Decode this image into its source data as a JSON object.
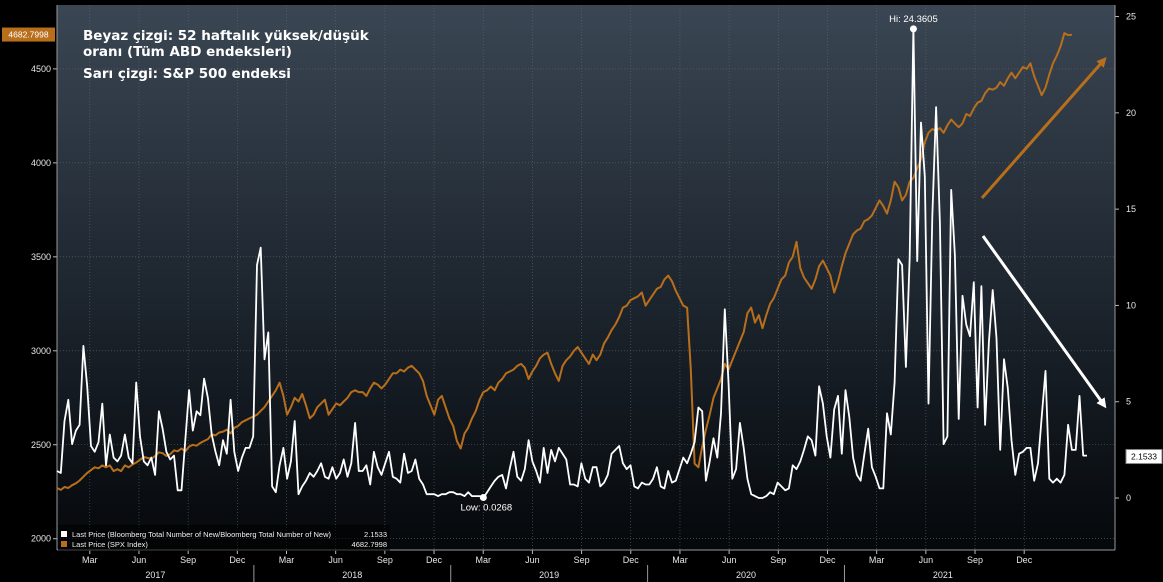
{
  "chart_data": {
    "type": "line",
    "title_lines": [
      "Beyaz çizgi: 52 haftalık yüksek/düşük",
      "oranı (Tüm ABD endeksleri)",
      "Sarı çizgi: S&P 500 endeksi"
    ],
    "left_axis": {
      "ticks": [
        "2000",
        "2500",
        "3000",
        "3500",
        "4000",
        "4500"
      ],
      "ylim": [
        1940,
        4840
      ]
    },
    "right_axis": {
      "ticks": [
        "0",
        "5",
        "10",
        "15",
        "20",
        "25"
      ],
      "ylim": [
        -2.7,
        25.6
      ]
    },
    "x_axis": {
      "month_ticks": [
        "Mar",
        "Jun",
        "Sep",
        "Dec",
        "Mar",
        "Jun",
        "Sep",
        "Dec",
        "Mar",
        "Jun",
        "Sep",
        "Dec",
        "Mar",
        "Jun",
        "Sep",
        "Dec",
        "Mar",
        "Jun",
        "Sep",
        "Dec"
      ],
      "years": [
        "2017",
        "2018",
        "2019",
        "2020",
        "2021"
      ]
    },
    "series": [
      {
        "name": "Last Price (Bloomberg Total Number of New/Bloomberg Total Number of New)",
        "last_value": "2.1533",
        "color": "#ffffff",
        "axis": "right",
        "values": [
          1.4,
          1.3,
          4.0,
          5.1,
          2.8,
          3.5,
          3.8,
          7.9,
          5.8,
          2.7,
          2.4,
          2.9,
          4.9,
          1.7,
          3.3,
          2.1,
          1.9,
          2.2,
          3.3,
          2.1,
          1.8,
          6.0,
          3.2,
          1.9,
          1.7,
          2.1,
          1.2,
          4.5,
          3.6,
          2.4,
          2.0,
          2.2,
          0.4,
          0.4,
          3.0,
          5.6,
          3.5,
          4.5,
          4.3,
          6.2,
          5.2,
          3.3,
          2.4,
          1.7,
          3.0,
          2.3,
          5.1,
          2.4,
          1.4,
          2.1,
          2.6,
          2.6,
          3.2,
          12.1,
          13.0,
          7.2,
          8.6,
          0.6,
          0.3,
          1.7,
          2.6,
          1.0,
          1.9,
          4.0,
          0.2,
          0.6,
          0.9,
          1.3,
          1.1,
          1.4,
          1.8,
          1.1,
          1.0,
          1.6,
          1.0,
          1.3,
          2.0,
          1.1,
          1.8,
          3.9,
          1.4,
          1.4,
          1.7,
          0.7,
          2.4,
          1.6,
          1.2,
          1.8,
          2.4,
          1.1,
          1.0,
          0.8,
          2.3,
          1.3,
          1.4,
          2.0,
          1.0,
          0.7,
          0.2,
          0.2,
          0.2,
          0.1,
          0.2,
          0.2,
          0.3,
          0.3,
          0.2,
          0.2,
          0.1,
          0.3,
          0.1,
          0.1,
          0.1,
          0.0,
          0.3,
          0.6,
          0.9,
          1.1,
          1.2,
          0.5,
          1.5,
          2.4,
          1.1,
          0.9,
          1.5,
          3.0,
          1.9,
          1.4,
          0.8,
          2.6,
          1.3,
          2.5,
          1.9,
          2.6,
          2.3,
          2.0,
          0.7,
          0.7,
          0.6,
          1.8,
          1.0,
          0.8,
          1.6,
          1.6,
          0.6,
          0.8,
          1.2,
          2.3,
          2.5,
          2.7,
          1.8,
          1.5,
          1.7,
          0.6,
          0.5,
          0.8,
          0.7,
          0.7,
          1.0,
          1.6,
          0.6,
          0.5,
          1.4,
          0.8,
          0.9,
          1.5,
          2.1,
          1.8,
          2.3,
          2.9,
          4.7,
          4.5,
          0.9,
          1.9,
          3.1,
          2.1,
          4.4,
          9.8,
          5.9,
          1.0,
          1.5,
          3.9,
          2.6,
          1.0,
          0.2,
          0.1,
          0.0,
          0.0,
          0.1,
          0.3,
          0.2,
          0.8,
          0.6,
          0.4,
          0.5,
          1.7,
          1.5,
          1.9,
          2.5,
          3.2,
          3.0,
          2.2,
          5.8,
          4.9,
          3.2,
          2.1,
          4.6,
          5.3,
          2.3,
          5.6,
          4.2,
          2.1,
          1.2,
          0.9,
          2.3,
          3.6,
          1.6,
          1.1,
          0.5,
          0.5,
          4.4,
          3.3,
          6.0,
          12.4,
          12.1,
          6.8,
          12.5,
          24.4,
          12.3,
          19.5,
          16.7,
          4.9,
          14.6,
          20.3,
          14.3,
          2.8,
          3.2,
          16.0,
          12.6,
          4.1,
          10.5,
          9.0,
          8.4,
          11.2,
          4.7,
          11.0,
          3.8,
          8.1,
          10.8,
          8.3,
          2.5,
          7.2,
          5.7,
          3.0,
          1.2,
          2.3,
          2.4,
          2.6,
          2.6,
          0.9,
          1.8,
          4.2,
          6.6,
          1.0,
          0.8,
          1.0,
          0.8,
          1.2,
          3.8,
          2.5,
          2.5,
          5.3,
          2.2,
          2.2
        ],
        "high": {
          "label": "Hi: 24.3605",
          "value": 24.3605
        },
        "low": {
          "label": "Low: 0.0268",
          "value": 0.0268
        }
      },
      {
        "name": "Last Price (SPX Index)",
        "last_value": "4682.7998",
        "color": "#b86f1c",
        "axis": "left",
        "values": [
          2270,
          2260,
          2275,
          2270,
          2285,
          2295,
          2310,
          2330,
          2350,
          2365,
          2380,
          2375,
          2390,
          2380,
          2390,
          2360,
          2370,
          2360,
          2390,
          2380,
          2395,
          2405,
          2420,
          2435,
          2430,
          2425,
          2440,
          2460,
          2455,
          2440,
          2450,
          2470,
          2465,
          2480,
          2465,
          2490,
          2500,
          2495,
          2510,
          2520,
          2530,
          2555,
          2550,
          2565,
          2570,
          2580,
          2560,
          2590,
          2600,
          2620,
          2630,
          2640,
          2650,
          2660,
          2680,
          2700,
          2730,
          2760,
          2790,
          2830,
          2760,
          2660,
          2700,
          2750,
          2730,
          2770,
          2710,
          2640,
          2660,
          2700,
          2720,
          2740,
          2660,
          2690,
          2720,
          2710,
          2730,
          2750,
          2780,
          2790,
          2780,
          2780,
          2760,
          2800,
          2830,
          2820,
          2800,
          2820,
          2850,
          2880,
          2880,
          2900,
          2890,
          2910,
          2920,
          2900,
          2880,
          2840,
          2760,
          2710,
          2660,
          2740,
          2760,
          2700,
          2640,
          2600,
          2520,
          2480,
          2560,
          2590,
          2640,
          2680,
          2740,
          2780,
          2790,
          2810,
          2790,
          2830,
          2850,
          2880,
          2890,
          2900,
          2920,
          2930,
          2910,
          2850,
          2890,
          2920,
          2960,
          2980,
          2990,
          2930,
          2880,
          2840,
          2920,
          2950,
          2970,
          3000,
          3020,
          2990,
          2960,
          2930,
          2980,
          2950,
          2980,
          3040,
          3070,
          3110,
          3140,
          3180,
          3230,
          3240,
          3270,
          3280,
          3290,
          3310,
          3240,
          3270,
          3300,
          3330,
          3340,
          3380,
          3400,
          3370,
          3320,
          3280,
          3240,
          3230,
          2900,
          2400,
          2380,
          2490,
          2580,
          2660,
          2750,
          2800,
          2850,
          2930,
          2900,
          2950,
          3000,
          3050,
          3100,
          3200,
          3230,
          3150,
          3190,
          3120,
          3190,
          3250,
          3280,
          3330,
          3380,
          3400,
          3470,
          3500,
          3580,
          3440,
          3390,
          3360,
          3330,
          3380,
          3450,
          3480,
          3440,
          3400,
          3310,
          3370,
          3450,
          3520,
          3570,
          3620,
          3640,
          3650,
          3690,
          3700,
          3720,
          3760,
          3800,
          3770,
          3730,
          3800,
          3900,
          3870,
          3800,
          3830,
          3900,
          3920,
          3970,
          4020,
          4110,
          4160,
          4180,
          4170,
          4185,
          4160,
          4200,
          4230,
          4210,
          4190,
          4210,
          4260,
          4250,
          4290,
          4320,
          4330,
          4370,
          4395,
          4390,
          4400,
          4430,
          4410,
          4450,
          4480,
          4450,
          4480,
          4510,
          4500,
          4530,
          4460,
          4410,
          4360,
          4400,
          4470,
          4530,
          4570,
          4620,
          4690,
          4680,
          4682
        ]
      }
    ]
  }
}
